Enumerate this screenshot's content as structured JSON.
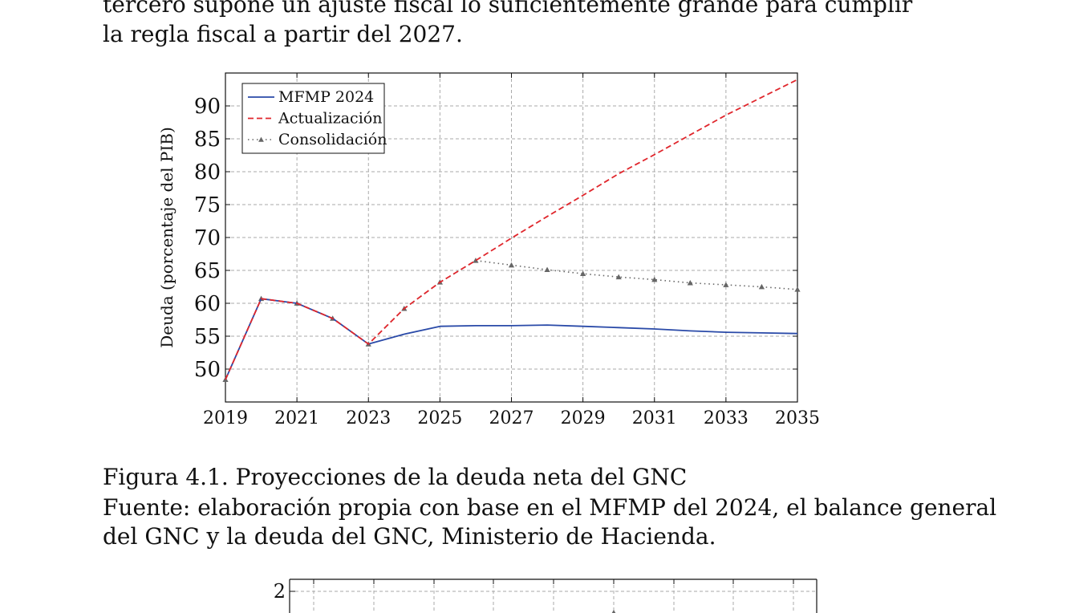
{
  "text": {
    "paragraph_lines": [
      "tercero supone un ajuste fiscal lo suficientemente grande para cumplir",
      "la regla fiscal a partir del 2027."
    ],
    "caption_title": "Figura 4.1. Proyecciones de la deuda neta del GNC",
    "caption_source_lines": [
      "Fuente: elaboración propia con base en el MFMP del 2024, el balance general",
      "del GNC y la deuda del GNC, Ministerio de Hacienda."
    ]
  },
  "colors": {
    "mfmp": "#2a4aa8",
    "actualizacion": "#e0262c",
    "consolidacion": "#666666",
    "grid": "#aaaaaa"
  },
  "chart_data": [
    {
      "type": "line",
      "title": "",
      "xlabel": "",
      "ylabel": "Deuda (porcentaje del PIB)",
      "xlim": [
        2019,
        2035
      ],
      "ylim": [
        45,
        95
      ],
      "xticks": [
        2019,
        2021,
        2023,
        2025,
        2027,
        2029,
        2031,
        2033,
        2035
      ],
      "yticks": [
        50,
        55,
        60,
        65,
        70,
        75,
        80,
        85,
        90
      ],
      "grid": true,
      "legend_position": "top-left",
      "series": [
        {
          "name": "MFMP 2024",
          "style": "solid",
          "color_key": "mfmp",
          "x": [
            2019,
            2020,
            2021,
            2022,
            2023,
            2024,
            2025,
            2026,
            2027,
            2028,
            2029,
            2030,
            2031,
            2032,
            2033,
            2034,
            2035
          ],
          "y": [
            48.4,
            60.7,
            60.0,
            57.7,
            53.8,
            55.3,
            56.5,
            56.6,
            56.6,
            56.7,
            56.5,
            56.3,
            56.1,
            55.8,
            55.6,
            55.5,
            55.4
          ]
        },
        {
          "name": "Actualización",
          "style": "dashed",
          "color_key": "actualizacion",
          "x": [
            2019,
            2020,
            2021,
            2022,
            2023,
            2024,
            2025,
            2026,
            2027,
            2028,
            2029,
            2030,
            2031,
            2032,
            2033,
            2034,
            2035
          ],
          "y": [
            48.4,
            60.7,
            60.0,
            57.7,
            53.8,
            59.2,
            63.2,
            66.5,
            69.9,
            73.2,
            76.4,
            79.7,
            82.6,
            85.6,
            88.6,
            91.3,
            94.0
          ]
        },
        {
          "name": "Consolidación",
          "style": "dotted-triangle",
          "color_key": "consolidacion",
          "x": [
            2019,
            2020,
            2021,
            2022,
            2023,
            2024,
            2025,
            2026,
            2027,
            2028,
            2029,
            2030,
            2031,
            2032,
            2033,
            2034,
            2035
          ],
          "y": [
            48.4,
            60.7,
            60.0,
            57.7,
            53.8,
            59.2,
            63.2,
            66.5,
            65.8,
            65.1,
            64.5,
            64.0,
            63.6,
            63.1,
            62.8,
            62.5,
            62.1
          ]
        }
      ]
    },
    {
      "type": "line",
      "title": "",
      "xlabel": "",
      "ylabel": "",
      "yticks": [
        2
      ],
      "grid": true,
      "partial": true,
      "series": []
    }
  ]
}
